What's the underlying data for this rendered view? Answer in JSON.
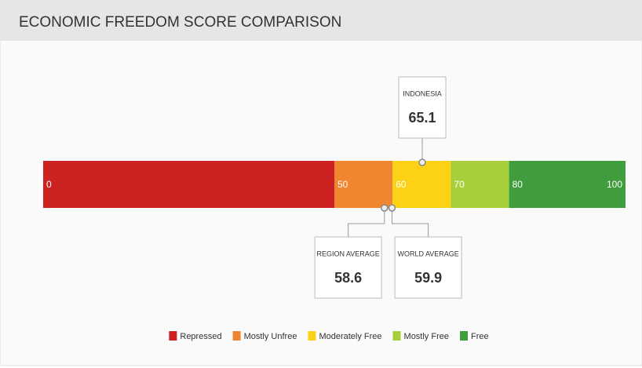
{
  "chart_data": {
    "type": "scale",
    "title": "ECONOMIC FREEDOM SCORE COMPARISON",
    "xlim": [
      0,
      100
    ],
    "xticks": [
      0,
      50,
      60,
      70,
      80,
      100
    ],
    "bands": [
      {
        "name": "Repressed",
        "color": "#cd2222",
        "from": 0,
        "to": 50
      },
      {
        "name": "Mostly Unfree",
        "color": "#f0862f",
        "from": 50,
        "to": 60
      },
      {
        "name": "Moderately Free",
        "color": "#fdd116",
        "from": 60,
        "to": 70
      },
      {
        "name": "Mostly Free",
        "color": "#a6cf3b",
        "from": 70,
        "to": 80
      },
      {
        "name": "Free",
        "color": "#409d3e",
        "from": 80,
        "to": 100
      }
    ],
    "markers": [
      {
        "label": "INDONESIA",
        "value": 65.1,
        "position": "above"
      },
      {
        "label": "REGION AVERAGE",
        "value": 58.6,
        "position": "below"
      },
      {
        "label": "WORLD AVERAGE",
        "value": 59.9,
        "position": "below"
      }
    ]
  }
}
